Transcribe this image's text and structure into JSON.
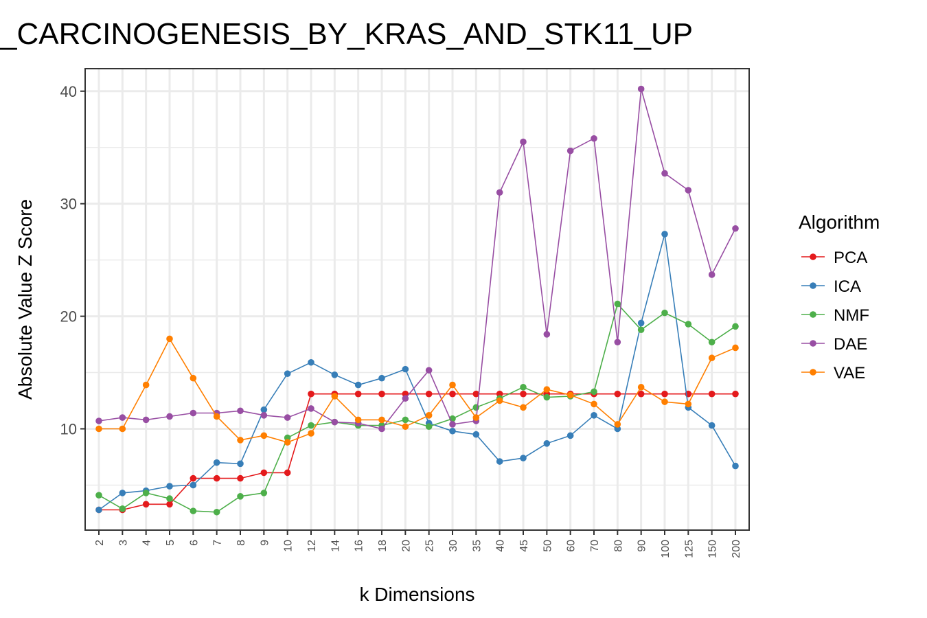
{
  "chart_data": {
    "type": "line",
    "title": "_CARCINOGENESIS_BY_KRAS_AND_STK11_UP",
    "xlabel": "k Dimensions",
    "ylabel": "Absolute Value Z Score",
    "categories": [
      "2",
      "3",
      "4",
      "5",
      "6",
      "7",
      "8",
      "9",
      "10",
      "12",
      "14",
      "16",
      "18",
      "20",
      "25",
      "30",
      "35",
      "40",
      "45",
      "50",
      "60",
      "70",
      "80",
      "90",
      "100",
      "125",
      "150",
      "200"
    ],
    "ylim": [
      1,
      42
    ],
    "yticks": [
      10,
      20,
      30,
      40
    ],
    "grid": true,
    "legend": {
      "title": "Algorithm",
      "position": "right"
    },
    "series": [
      {
        "name": "PCA",
        "color": "#e41a1c",
        "values": [
          2.8,
          2.8,
          3.3,
          3.3,
          5.6,
          5.6,
          5.6,
          6.1,
          6.1,
          13.1,
          13.1,
          13.1,
          13.1,
          13.1,
          13.1,
          13.1,
          13.1,
          13.1,
          13.1,
          13.1,
          13.1,
          13.1,
          13.1,
          13.1,
          13.1,
          13.1,
          13.1,
          13.1
        ]
      },
      {
        "name": "ICA",
        "color": "#377eb8",
        "values": [
          2.8,
          4.3,
          4.5,
          4.9,
          5.0,
          7.0,
          6.9,
          11.7,
          14.9,
          15.9,
          14.8,
          13.9,
          14.5,
          15.3,
          10.5,
          9.8,
          9.5,
          7.1,
          7.4,
          8.7,
          9.4,
          11.2,
          10.0,
          19.4,
          27.3,
          11.9,
          10.3,
          6.7
        ]
      },
      {
        "name": "NMF",
        "color": "#4daf4a",
        "values": [
          4.1,
          2.9,
          4.3,
          3.8,
          2.7,
          2.6,
          4.0,
          4.3,
          9.2,
          10.3,
          10.6,
          10.3,
          10.3,
          10.8,
          10.2,
          10.9,
          11.9,
          12.7,
          13.7,
          12.8,
          12.9,
          13.3,
          21.1,
          18.8,
          20.3,
          19.3,
          17.7,
          19.1
        ]
      },
      {
        "name": "DAE",
        "color": "#984ea3",
        "values": [
          10.7,
          11.0,
          10.8,
          11.1,
          11.4,
          11.4,
          11.6,
          11.2,
          11.0,
          11.8,
          10.6,
          10.5,
          10.0,
          12.7,
          15.2,
          10.4,
          10.7,
          31.0,
          35.5,
          18.4,
          34.7,
          35.8,
          17.7,
          40.2,
          32.7,
          31.2,
          23.7,
          27.8
        ]
      },
      {
        "name": "VAE",
        "color": "#ff7f00",
        "values": [
          10.0,
          10.0,
          13.9,
          18.0,
          14.5,
          11.1,
          9.0,
          9.4,
          8.8,
          9.6,
          12.9,
          10.8,
          10.8,
          10.2,
          11.2,
          13.9,
          11.0,
          12.5,
          11.9,
          13.5,
          13.0,
          12.2,
          10.4,
          13.7,
          12.4,
          12.2,
          16.3,
          17.2
        ]
      }
    ]
  }
}
